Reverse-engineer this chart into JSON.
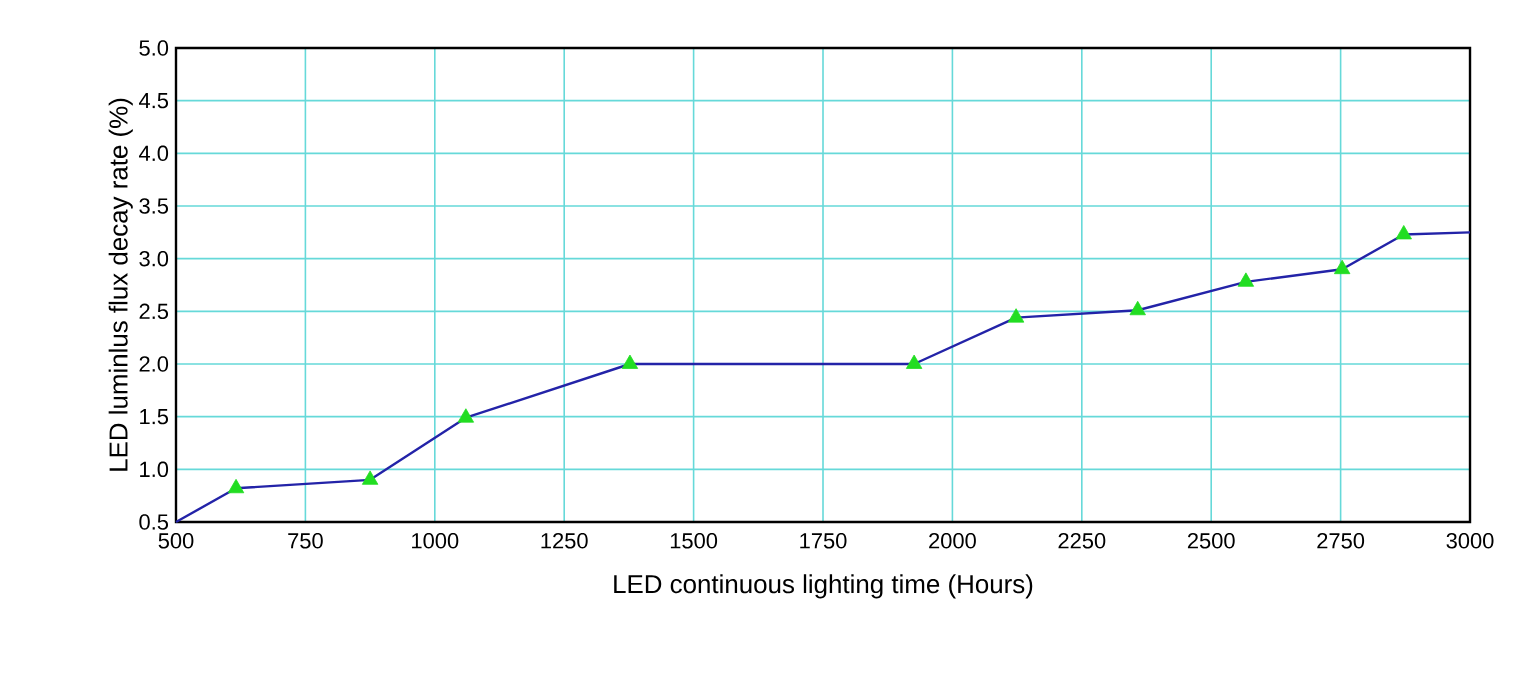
{
  "chart_data": {
    "type": "line",
    "xlabel": "LED continuous lighting time (Hours)",
    "ylabel": "LED luminlus flux decay rate (%)",
    "series": [
      {
        "color": "#2323a8",
        "marker": "none",
        "line_style": "solid",
        "x": [
          500,
          616,
          875,
          1060,
          1377,
          1926,
          2123,
          2358,
          2567,
          2753,
          2872,
          3000
        ],
        "values": [
          0.5,
          0.82,
          0.9,
          1.49,
          2.0,
          2.0,
          2.44,
          2.51,
          2.78,
          2.9,
          3.23,
          3.25
        ]
      },
      {
        "type": "scatter",
        "color": "#22dd22",
        "marker": "triangle",
        "x": [
          616,
          875,
          1060,
          1377,
          1926,
          2123,
          2358,
          2567,
          2753,
          2872
        ],
        "values": [
          0.82,
          0.9,
          1.49,
          2.0,
          2.0,
          2.44,
          2.51,
          2.78,
          2.9,
          3.23
        ]
      }
    ],
    "xlim": [
      500,
      3000
    ],
    "xticks": [
      500,
      750,
      1000,
      1250,
      1500,
      1750,
      2000,
      2250,
      2500,
      2750,
      3000
    ],
    "ylim": [
      0.5,
      5.0
    ],
    "yticks": [
      {
        "value": 0.5,
        "label": "0.5"
      },
      {
        "value": 1.0,
        "label": "1.0"
      },
      {
        "value": 1.5,
        "label": "1.5"
      },
      {
        "value": 2.0,
        "label": "2.0"
      },
      {
        "value": 2.5,
        "label": "2.5"
      },
      {
        "value": 3.0,
        "label": "3.0"
      },
      {
        "value": 3.5,
        "label": "3.5"
      },
      {
        "value": 4.0,
        "label": "4.0"
      },
      {
        "value": 4.5,
        "label": "4.5"
      },
      {
        "value": 5.0,
        "label": "5.0"
      }
    ],
    "grid": true
  }
}
